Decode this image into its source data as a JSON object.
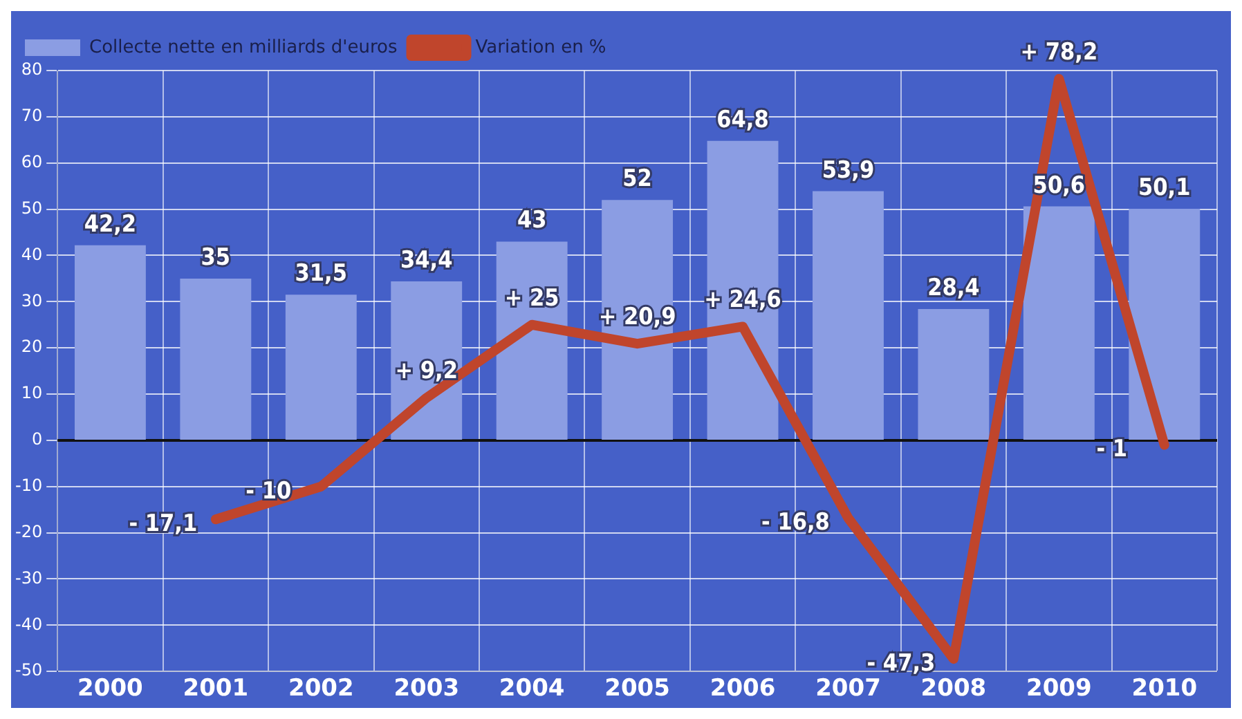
{
  "chart_data": {
    "type": "bar",
    "categories": [
      "2000",
      "2001",
      "2002",
      "2003",
      "2004",
      "2005",
      "2006",
      "2007",
      "2008",
      "2009",
      "2010"
    ],
    "series": [
      {
        "name": "Collecte nette en milliards d'euros",
        "color": "#8b9de3",
        "values": [
          42.2,
          35,
          31.5,
          34.4,
          43,
          52,
          64.8,
          53.9,
          28.4,
          50.6,
          50.1
        ],
        "value_labels": [
          "42,2",
          "35",
          "31,5",
          "34,4",
          "43",
          "52",
          "64,8",
          "53,9",
          "28,4",
          "50,6",
          "50,1"
        ]
      },
      {
        "name": "Variation en %",
        "type": "line",
        "color": "#c0452c",
        "values": [
          null,
          -17.1,
          -10,
          9.2,
          25,
          20.9,
          24.6,
          -16.8,
          -47.3,
          78.2,
          -1
        ],
        "value_labels": [
          null,
          "- 17,1",
          "- 10",
          "+ 9,2",
          "+ 25",
          "+ 20,9",
          "+ 24,6",
          "- 16,8",
          "- 47,3",
          "+ 78,2",
          "- 1"
        ]
      }
    ],
    "ylim": [
      -50,
      80
    ],
    "yticks": [
      80,
      70,
      60,
      50,
      40,
      30,
      20,
      10,
      0,
      -10,
      -20,
      -30,
      -40,
      -50
    ],
    "grid": true,
    "legend": "top left",
    "marker": "none",
    "line_style": "solid"
  }
}
